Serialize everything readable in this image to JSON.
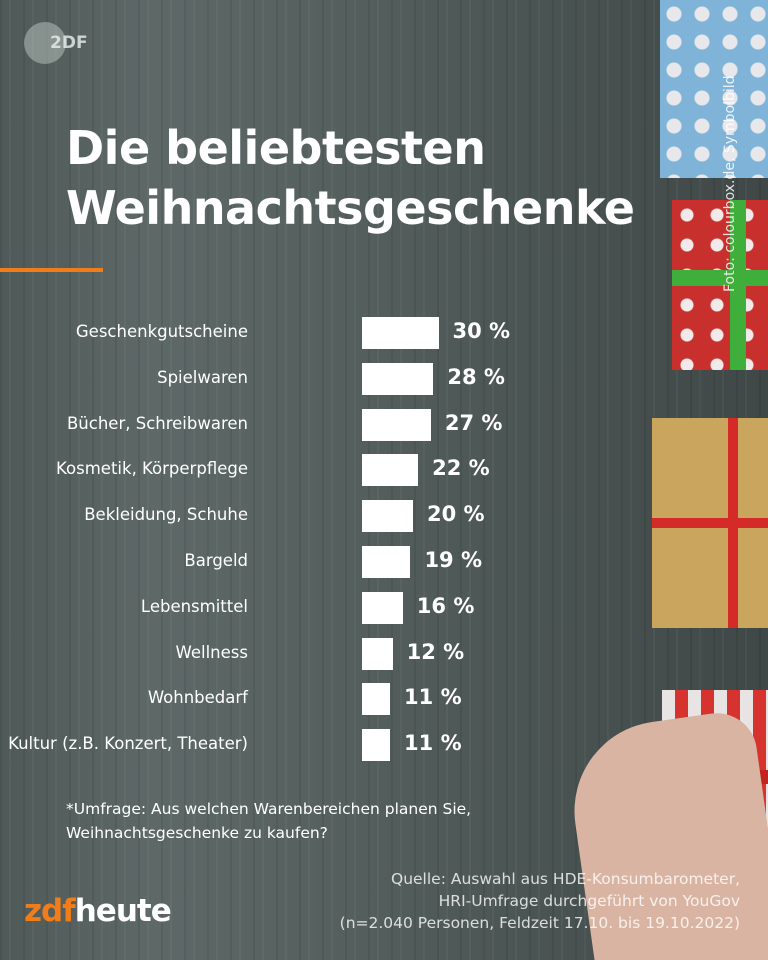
{
  "brand": {
    "badge": "2DF",
    "logo_part1": "zdf",
    "logo_part2": "heute",
    "accent_color": "#f07d19"
  },
  "title_line1": "Die beliebtesten",
  "title_line2": "Weihnachtsgeschenke",
  "photo_credit": "Foto: colourbox.de, Symbolbild",
  "chart_data": {
    "type": "bar",
    "orientation": "horizontal",
    "categories": [
      "Geschenkgutscheine",
      "Spielwaren",
      "Bücher, Schreibwaren",
      "Kosmetik, Körperpflege",
      "Bekleidung, Schuhe",
      "Bargeld",
      "Lebensmittel",
      "Wellness",
      "Wohnbedarf",
      "Kultur (z.B. Konzert, Theater)"
    ],
    "values": [
      30,
      28,
      27,
      22,
      20,
      19,
      16,
      12,
      11,
      11
    ],
    "value_labels": [
      "30 %",
      "28 %",
      "27 %",
      "22 %",
      "20 %",
      "19 %",
      "16 %",
      "12 %",
      "11 %",
      "11 %"
    ],
    "unit": "%",
    "bar_color": "#ffffff",
    "grid": false
  },
  "note_line1": "*Umfrage: Aus welchen Warenbereichen planen Sie,",
  "note_line2": "Weihnachtsgeschenke zu kaufen?",
  "source_line1": "Quelle: Auswahl aus HDE-Konsumbarometer,",
  "source_line2": "HRI-Umfrage durchgeführt von YouGov",
  "source_line3": "(n=2.040 Personen, Feldzeit 17.10. bis 19.10.2022)"
}
